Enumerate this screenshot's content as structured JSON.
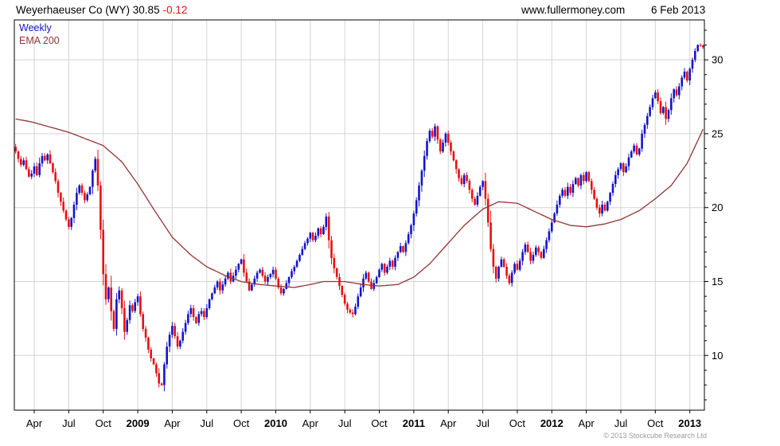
{
  "header": {
    "title_main": "Weyerhaeuser Co (WY) 30.85",
    "change": "-0.12",
    "site": "www.fullermoney.com",
    "date": "6 Feb 2013"
  },
  "legend": {
    "weekly": "Weekly",
    "ema": "EMA 200"
  },
  "footer": {
    "copyright": "© 2013 Stockcube Research Ltd"
  },
  "chart_data": {
    "type": "candlestick",
    "timeframe": "weekly",
    "title": "Weyerhaeuser Co (WY)",
    "last_price": 30.85,
    "change": -0.12,
    "ylim": [
      6.3,
      32.7
    ],
    "y_ticks": [
      10,
      15,
      20,
      25,
      30
    ],
    "x_ticks": [
      {
        "label": "Apr",
        "week": 7,
        "bold": false
      },
      {
        "label": "Jul",
        "week": 20,
        "bold": false
      },
      {
        "label": "Oct",
        "week": 33,
        "bold": false
      },
      {
        "label": "2009",
        "week": 46,
        "bold": true
      },
      {
        "label": "Apr",
        "week": 59,
        "bold": false
      },
      {
        "label": "Jul",
        "week": 72,
        "bold": false
      },
      {
        "label": "Oct",
        "week": 85,
        "bold": false
      },
      {
        "label": "2010",
        "week": 98,
        "bold": true
      },
      {
        "label": "Apr",
        "week": 111,
        "bold": false
      },
      {
        "label": "Jul",
        "week": 124,
        "bold": false
      },
      {
        "label": "Oct",
        "week": 137,
        "bold": false
      },
      {
        "label": "2011",
        "week": 150,
        "bold": true
      },
      {
        "label": "Apr",
        "week": 163,
        "bold": false
      },
      {
        "label": "Jul",
        "week": 176,
        "bold": false
      },
      {
        "label": "Oct",
        "week": 189,
        "bold": false
      },
      {
        "label": "2012",
        "week": 202,
        "bold": true
      },
      {
        "label": "Apr",
        "week": 215,
        "bold": false
      },
      {
        "label": "Jul",
        "week": 228,
        "bold": false
      },
      {
        "label": "Oct",
        "week": 241,
        "bold": false
      },
      {
        "label": "2013",
        "week": 254,
        "bold": true
      }
    ],
    "weekly_closes": [
      23.8,
      23.3,
      22.9,
      23.2,
      22.6,
      22.1,
      22.3,
      22.8,
      22.2,
      23.0,
      23.5,
      23.2,
      23.6,
      23.0,
      22.4,
      21.8,
      21.0,
      20.4,
      19.8,
      19.2,
      18.7,
      19.3,
      20.2,
      21.0,
      21.5,
      21.0,
      20.5,
      20.9,
      21.4,
      22.5,
      23.3,
      21.5,
      18.5,
      15.5,
      13.8,
      14.6,
      13.0,
      11.8,
      13.8,
      14.4,
      13.2,
      11.6,
      12.4,
      13.4,
      13.0,
      13.6,
      14.0,
      12.8,
      11.8,
      11.2,
      10.4,
      9.8,
      9.4,
      8.8,
      8.1,
      8.0,
      9.4,
      10.6,
      11.4,
      12.0,
      11.3,
      10.6,
      11.0,
      11.6,
      12.2,
      12.8,
      13.2,
      12.6,
      12.2,
      12.8,
      13.0,
      12.6,
      13.2,
      13.8,
      14.2,
      14.6,
      15.0,
      14.4,
      14.8,
      15.2,
      15.6,
      15.0,
      15.4,
      15.8,
      16.2,
      16.5,
      15.6,
      15.0,
      14.4,
      14.8,
      15.2,
      15.6,
      15.8,
      15.4,
      15.0,
      15.3,
      15.5,
      15.8,
      15.2,
      14.6,
      14.2,
      14.5,
      14.9,
      15.3,
      15.7,
      16.0,
      16.4,
      16.8,
      17.2,
      17.6,
      17.9,
      18.3,
      17.8,
      18.1,
      18.6,
      18.2,
      18.7,
      19.4,
      17.8,
      16.6,
      15.9,
      15.3,
      14.7,
      14.1,
      13.5,
      13.1,
      12.9,
      12.8,
      13.3,
      14.0,
      14.6,
      15.2,
      15.6,
      15.0,
      14.5,
      14.9,
      15.3,
      15.8,
      16.2,
      15.6,
      16.0,
      16.4,
      16.0,
      16.6,
      17.0,
      17.4,
      17.0,
      17.6,
      18.2,
      18.8,
      19.6,
      20.5,
      21.5,
      22.5,
      23.5,
      24.5,
      25.2,
      24.8,
      25.5,
      24.6,
      23.8,
      24.4,
      25.0,
      24.4,
      23.8,
      23.2,
      22.6,
      22.0,
      21.6,
      22.2,
      21.8,
      21.2,
      20.6,
      20.2,
      20.8,
      21.4,
      21.8,
      20.6,
      19.0,
      17.2,
      16.0,
      15.2,
      16.0,
      16.5,
      16.0,
      15.4,
      14.9,
      15.6,
      16.2,
      15.8,
      16.4,
      17.0,
      17.5,
      17.0,
      16.4,
      16.8,
      17.3,
      17.0,
      16.6,
      17.2,
      17.8,
      18.4,
      19.0,
      19.6,
      20.2,
      20.8,
      21.2,
      20.8,
      21.4,
      21.0,
      21.6,
      22.0,
      21.5,
      22.2,
      21.8,
      22.4,
      21.8,
      21.2,
      20.6,
      20.0,
      19.6,
      20.2,
      19.8,
      20.4,
      21.0,
      21.6,
      22.2,
      22.6,
      23.0,
      22.4,
      22.8,
      23.4,
      23.8,
      24.2,
      23.6,
      24.0,
      25.0,
      25.6,
      26.2,
      26.8,
      27.4,
      27.8,
      27.2,
      26.4,
      26.8,
      26.0,
      26.6,
      27.4,
      28.0,
      27.6,
      28.2,
      28.8,
      29.2,
      28.6,
      29.4,
      30.0,
      30.6,
      31.0,
      30.97,
      30.85
    ],
    "ema200": [
      [
        0,
        26.0
      ],
      [
        6,
        25.8
      ],
      [
        20,
        25.1
      ],
      [
        33,
        24.2
      ],
      [
        40,
        23.1
      ],
      [
        46,
        21.6
      ],
      [
        52,
        19.9
      ],
      [
        59,
        18.0
      ],
      [
        66,
        16.8
      ],
      [
        72,
        16.0
      ],
      [
        79,
        15.4
      ],
      [
        85,
        15.0
      ],
      [
        92,
        14.8
      ],
      [
        98,
        14.7
      ],
      [
        105,
        14.6
      ],
      [
        111,
        14.8
      ],
      [
        116,
        15.0
      ],
      [
        124,
        15.0
      ],
      [
        131,
        14.8
      ],
      [
        137,
        14.7
      ],
      [
        144,
        14.8
      ],
      [
        150,
        15.3
      ],
      [
        156,
        16.2
      ],
      [
        163,
        17.6
      ],
      [
        169,
        18.8
      ],
      [
        176,
        19.9
      ],
      [
        182,
        20.4
      ],
      [
        189,
        20.3
      ],
      [
        196,
        19.7
      ],
      [
        202,
        19.2
      ],
      [
        209,
        18.8
      ],
      [
        215,
        18.7
      ],
      [
        222,
        18.9
      ],
      [
        228,
        19.2
      ],
      [
        235,
        19.8
      ],
      [
        241,
        20.6
      ],
      [
        247,
        21.5
      ],
      [
        253,
        23.0
      ],
      [
        259,
        25.3
      ]
    ],
    "colors": {
      "up": "#1414cc",
      "down": "#e81010",
      "ema": "#913434",
      "grid": "#d4d4d4",
      "axis": "#000000"
    }
  }
}
